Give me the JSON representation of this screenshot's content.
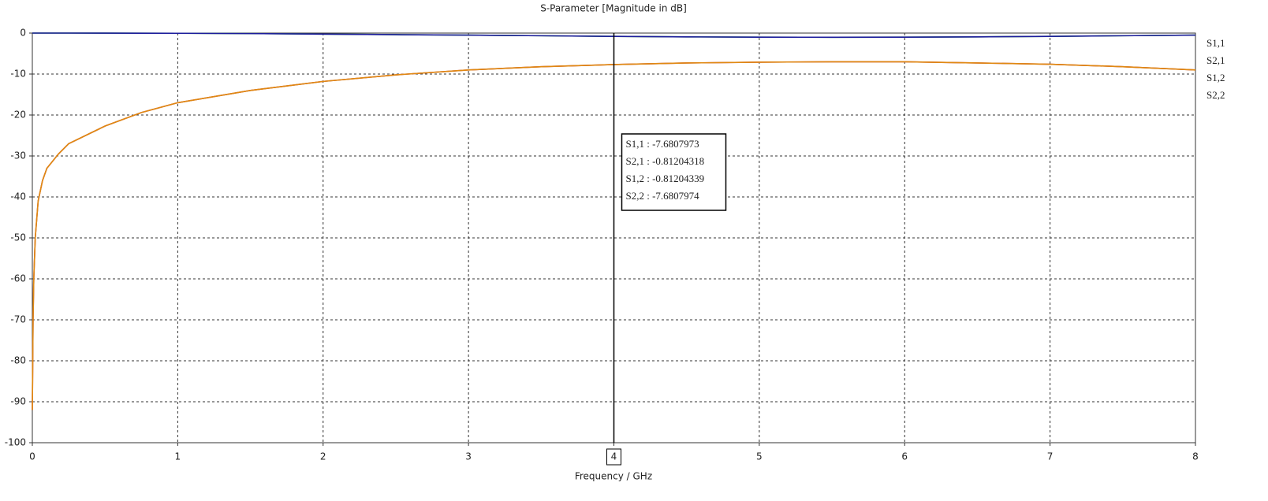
{
  "chart_data": {
    "type": "line",
    "title": "S-Parameter [Magnitude in dB]",
    "x_label": "Frequency / GHz",
    "x": [
      0,
      0.005,
      0.01,
      0.02,
      0.04,
      0.07,
      0.1,
      0.18,
      0.25,
      0.5,
      0.75,
      1,
      1.5,
      2,
      2.5,
      3,
      3.5,
      4,
      4.5,
      5,
      5.5,
      6,
      6.5,
      7,
      7.5,
      8
    ],
    "series": [
      {
        "name": "S1,1",
        "color": "#c0282d",
        "values": [
          -92,
          -70,
          -60,
          -50,
          -41,
          -36,
          -33,
          -29.5,
          -27,
          -22.7,
          -19.4,
          -17,
          -14,
          -11.8,
          -10.2,
          -9,
          -8.2,
          -7.68,
          -7.3,
          -7.1,
          -7,
          -7,
          -7.3,
          -7.6,
          -8.2,
          -9
        ]
      },
      {
        "name": "S2,1",
        "color": "#2e9e2e",
        "values": [
          0,
          0,
          0,
          0,
          0,
          0,
          0,
          0,
          0,
          -0.02,
          -0.03,
          -0.05,
          -0.12,
          -0.25,
          -0.38,
          -0.5,
          -0.65,
          -0.81,
          -0.92,
          -1,
          -1.02,
          -1,
          -0.92,
          -0.8,
          -0.65,
          -0.5
        ]
      },
      {
        "name": "S1,2",
        "color": "#1c1c9c",
        "values": [
          0,
          0,
          0,
          0,
          0,
          0,
          0,
          0,
          0,
          -0.02,
          -0.03,
          -0.05,
          -0.12,
          -0.25,
          -0.38,
          -0.5,
          -0.65,
          -0.81,
          -0.92,
          -1,
          -1.02,
          -1,
          -0.92,
          -0.8,
          -0.65,
          -0.5
        ]
      },
      {
        "name": "S2,2",
        "color": "#e08a12",
        "values": [
          -92,
          -70,
          -60,
          -50,
          -41,
          -36,
          -33,
          -29.5,
          -27,
          -22.7,
          -19.4,
          -17,
          -14,
          -11.8,
          -10.2,
          -9,
          -8.2,
          -7.68,
          -7.3,
          -7.1,
          -7,
          -7,
          -7.3,
          -7.6,
          -8.2,
          -9
        ]
      }
    ],
    "xlim": [
      0,
      8
    ],
    "xticks": [
      0,
      1,
      2,
      3,
      4,
      5,
      6,
      7,
      8
    ],
    "ylim": [
      -100,
      0
    ],
    "yticks": [
      0,
      -10,
      -20,
      -30,
      -40,
      -50,
      -60,
      -70,
      -80,
      -90,
      -100
    ],
    "grid": true,
    "marker": {
      "x": 4,
      "readouts": [
        "S1,1 : -7.6807973",
        "S2,1 : -0.81204318",
        "S1,2 : -0.81204339",
        "S2,2 : -7.6807974"
      ]
    }
  }
}
